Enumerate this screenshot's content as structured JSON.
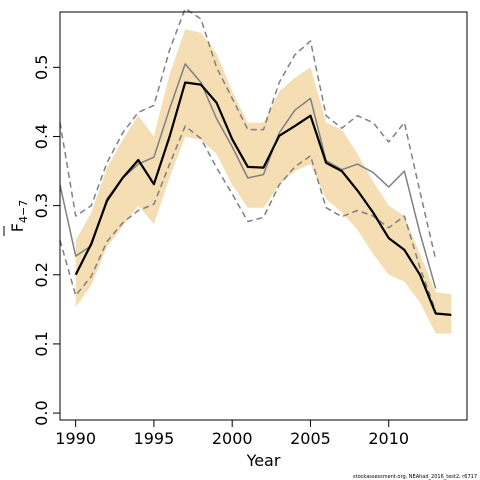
{
  "chart_data": {
    "type": "line",
    "xlabel": "Year",
    "ylabel_main": "F",
    "ylabel_sub": "4−7",
    "xlim": [
      1989,
      2015
    ],
    "ylim": [
      -0.01,
      0.58
    ],
    "x_ticks": [
      1990,
      1995,
      2000,
      2005,
      2010
    ],
    "y_ticks": [
      "0.0",
      "0.1",
      "0.2",
      "0.3",
      "0.4",
      "0.5"
    ],
    "credit": "stockassessment.org, NEAhad_2016_test2, r6717",
    "colors": {
      "band": "#f5deb3",
      "estimate": "#000000",
      "retro": "#808080",
      "retro_ci": "#808080"
    },
    "band": {
      "x": [
        1990,
        1991,
        1992,
        1993,
        1994,
        1995,
        1996,
        1997,
        1998,
        1999,
        2000,
        2001,
        2002,
        2003,
        2004,
        2005,
        2006,
        2007,
        2008,
        2009,
        2010,
        2011,
        2012,
        2013,
        2014
      ],
      "lower": [
        0.153,
        0.185,
        0.24,
        0.27,
        0.3,
        0.273,
        0.34,
        0.4,
        0.395,
        0.375,
        0.33,
        0.297,
        0.297,
        0.33,
        0.35,
        0.36,
        0.31,
        0.29,
        0.265,
        0.23,
        0.2,
        0.19,
        0.16,
        0.115,
        0.115
      ],
      "upper": [
        0.25,
        0.29,
        0.355,
        0.395,
        0.43,
        0.4,
        0.49,
        0.555,
        0.55,
        0.52,
        0.465,
        0.42,
        0.42,
        0.465,
        0.485,
        0.5,
        0.42,
        0.41,
        0.375,
        0.335,
        0.3,
        0.285,
        0.23,
        0.175,
        0.172
      ]
    },
    "series": [
      {
        "role": "estimate",
        "x": [
          1990,
          1991,
          1992,
          1993,
          1994,
          1995,
          1996,
          1997,
          1998,
          1999,
          2000,
          2001,
          2002,
          2003,
          2004,
          2005,
          2006,
          2007,
          2008,
          2009,
          2010,
          2011,
          2012,
          2013,
          2014
        ],
        "values": [
          0.2,
          0.245,
          0.307,
          0.34,
          0.366,
          0.331,
          0.4,
          0.478,
          0.475,
          0.449,
          0.396,
          0.356,
          0.355,
          0.401,
          0.415,
          0.43,
          0.362,
          0.35,
          0.322,
          0.29,
          0.253,
          0.236,
          0.2,
          0.144,
          0.142
        ]
      },
      {
        "role": "retro",
        "x": [
          1989,
          1990,
          1991,
          1992,
          1993,
          1994,
          1995,
          1996,
          1997,
          1998,
          1999,
          2000,
          2001,
          2002,
          2003,
          2004,
          2005,
          2006,
          2007,
          2008,
          2009,
          2010,
          2011,
          2012,
          2013
        ],
        "values": [
          0.33,
          0.227,
          0.242,
          0.31,
          0.34,
          0.36,
          0.37,
          0.44,
          0.505,
          0.478,
          0.426,
          0.385,
          0.34,
          0.345,
          0.405,
          0.438,
          0.455,
          0.365,
          0.352,
          0.36,
          0.348,
          0.327,
          0.35,
          0.26,
          0.18
        ]
      },
      {
        "role": "retro_upper",
        "x": [
          1989,
          1990,
          1991,
          1992,
          1993,
          1994,
          1995,
          1996,
          1997,
          1998,
          1999,
          2000,
          2001,
          2002,
          2003,
          2004,
          2005,
          2006,
          2007,
          2008,
          2009,
          2010,
          2011,
          2012,
          2013
        ],
        "values": [
          0.42,
          0.285,
          0.3,
          0.362,
          0.405,
          0.435,
          0.445,
          0.525,
          0.585,
          0.57,
          0.5,
          0.455,
          0.41,
          0.41,
          0.478,
          0.518,
          0.538,
          0.43,
          0.412,
          0.43,
          0.42,
          0.392,
          0.42,
          0.32,
          0.222
        ]
      },
      {
        "role": "retro_lower",
        "x": [
          1989,
          1990,
          1991,
          1992,
          1993,
          1994,
          1995,
          1996,
          1997,
          1998,
          1999,
          2000,
          2001,
          2002,
          2003,
          2004,
          2005,
          2006,
          2007,
          2008,
          2009,
          2010,
          2011,
          2012,
          2013
        ],
        "values": [
          0.25,
          0.17,
          0.198,
          0.248,
          0.275,
          0.293,
          0.302,
          0.36,
          0.415,
          0.397,
          0.355,
          0.317,
          0.277,
          0.283,
          0.33,
          0.356,
          0.372,
          0.297,
          0.284,
          0.293,
          0.285,
          0.268,
          0.285,
          0.21,
          0.148
        ]
      }
    ]
  }
}
